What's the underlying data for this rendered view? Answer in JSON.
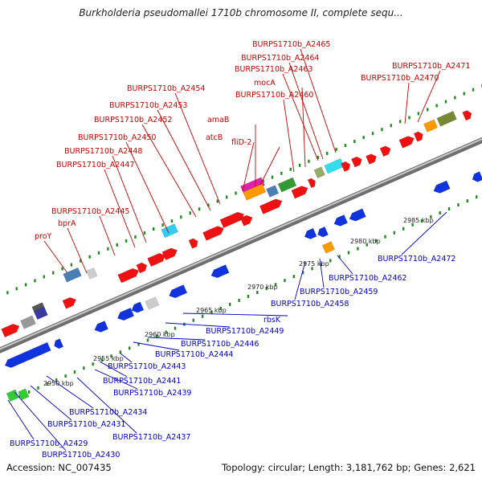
{
  "title": "Burkholderia pseudomallei 1710b chromosome II, complete sequ...",
  "footer": {
    "accession": "Accession: NC_007435",
    "topology": "Topology: circular; Length: 3,181,762 bp; Genes: 2,621"
  },
  "colors": {
    "forward_label": "#cc0000",
    "reverse_label": "#0000cc",
    "forward_gene": "#ee1111",
    "reverse_gene": "#1133dd",
    "backbone": "#888888",
    "tick": "#228b22"
  },
  "scale_labels": [
    "2950 kbp",
    "2955 kbp",
    "2960 kbp",
    "2965 kbp",
    "2970 kbp",
    "2975 kbp",
    "2980 kbp",
    "2985 kbp"
  ],
  "forward_labels": [
    "proY",
    "bprA",
    "BURPS1710b_A2445",
    "BURPS1710b_A2447",
    "BURPS1710b_A2448",
    "BURPS1710b_A2450",
    "BURPS1710b_A2452",
    "BURPS1710b_A2453",
    "BURPS1710b_A2454",
    "atcB",
    "amaB",
    "fliD-2",
    "BURPS1710b_A2460",
    "mocA",
    "BURPS1710b_A2463",
    "BURPS1710b_A2464",
    "BURPS1710b_A2465",
    "BURPS1710b_A2470",
    "BURPS1710b_A2471"
  ],
  "reverse_labels": [
    "BURPS1710b_A2429",
    "BURPS1710b_A2430",
    "BURPS1710b_A2431",
    "BURPS1710b_A2434",
    "BURPS1710b_A2437",
    "BURPS1710b_A2439",
    "BURPS1710b_A2441",
    "BURPS1710b_A2443",
    "BURPS1710b_A2444",
    "BURPS1710b_A2446",
    "BURPS1710b_A2449",
    "rbsK",
    "BURPS1710b_A2458",
    "BURPS1710b_A2459",
    "BURPS1710b_A2462",
    "BURPS1710b_A2472"
  ]
}
